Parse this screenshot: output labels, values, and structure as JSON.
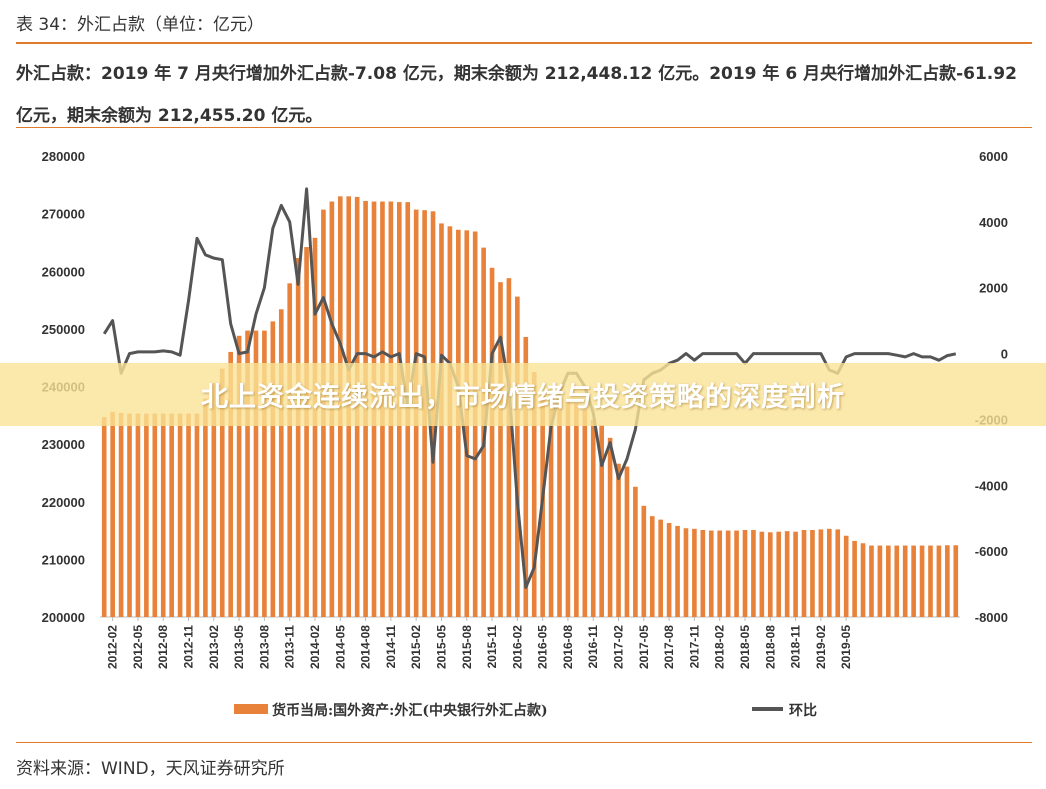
{
  "header": {
    "title": "表 34：外汇占款（单位：亿元）",
    "description": "外汇占款：2019 年 7 月央行增加外汇占款-7.08 亿元，期末余额为 212,448.12 亿元。2019 年 6 月央行增加外汇占款-61.92 亿元，期末余额为 212,455.20 亿元。"
  },
  "banner": {
    "text": "北上资金连续流出，市场情绪与投资策略的深度剖析"
  },
  "footer": {
    "source": "资料来源：WIND，天风证券研究所"
  },
  "colors": {
    "bar": "#e8823a",
    "line": "#555555",
    "accent": "#e07b2a",
    "banner": "#f5d77a"
  },
  "chart_data": {
    "type": "bar+line",
    "title": "",
    "xlabel": "",
    "ylabel": "",
    "ylim": [
      200000,
      280000
    ],
    "y2lim": [
      -8000,
      6000
    ],
    "yticks": [
      200000,
      210000,
      220000,
      230000,
      240000,
      250000,
      260000,
      270000,
      280000
    ],
    "y2ticks": [
      -8000,
      -6000,
      -4000,
      -2000,
      0,
      2000,
      4000,
      6000
    ],
    "xtick_labels": [
      "2012-02",
      "2012-05",
      "2012-08",
      "2012-11",
      "2013-02",
      "2013-05",
      "2013-08",
      "2013-11",
      "2014-02",
      "2014-05",
      "2014-08",
      "2014-11",
      "2015-02",
      "2015-05",
      "2015-08",
      "2015-11",
      "2016-02",
      "2016-05",
      "2016-08",
      "2016-11",
      "2017-02",
      "2017-05",
      "2017-08",
      "2017-11",
      "2018-02",
      "2018-05",
      "2018-08",
      "2018-11",
      "2019-02",
      "2019-05"
    ],
    "x_start": "2012-01",
    "grid": false,
    "legend_position": "bottom",
    "series": [
      {
        "name": "货币当局:国外资产:外汇(中央银行外汇占款)",
        "type": "bar",
        "axis": "left",
        "values": [
          234700,
          235600,
          235400,
          235300,
          235300,
          235300,
          235300,
          235300,
          235300,
          235300,
          235300,
          235300,
          237900,
          240600,
          243100,
          246000,
          248800,
          249700,
          249700,
          249700,
          251300,
          253400,
          257900,
          262300,
          264200,
          265800,
          270700,
          272100,
          273000,
          273000,
          272900,
          272200,
          272100,
          272100,
          272100,
          272000,
          272000,
          270700,
          270600,
          270400,
          268300,
          267800,
          267200,
          267100,
          266900,
          264100,
          260600,
          258100,
          258800,
          255600,
          248600,
          242500,
          239100,
          238100,
          238100,
          237500,
          237100,
          236000,
          234200,
          233300,
          231100,
          226600,
          226100,
          222600,
          219300,
          217500,
          216900,
          216300,
          215800,
          215400,
          215300,
          215100,
          215000,
          215000,
          215000,
          215000,
          215100,
          215100,
          214800,
          214700,
          214800,
          214900,
          214800,
          215100,
          215100,
          215200,
          215300,
          215200,
          214100,
          213200,
          212800,
          212400,
          212400,
          212400,
          212400,
          212400,
          212400,
          212400,
          212400,
          212400,
          212455,
          212448
        ]
      },
      {
        "name": "环比",
        "type": "line",
        "axis": "right",
        "values": [
          600,
          1000,
          -600,
          0,
          50,
          50,
          50,
          80,
          50,
          -50,
          1600,
          3500,
          3000,
          2900,
          2850,
          900,
          0,
          50,
          1200,
          2000,
          3800,
          4500,
          4000,
          2100,
          5000,
          1200,
          1700,
          900,
          300,
          -500,
          0,
          0,
          -100,
          50,
          -100,
          0,
          -1600,
          0,
          -100,
          -3300,
          -50,
          -300,
          -1000,
          -3100,
          -3200,
          -2800,
          0,
          500,
          -1000,
          -4500,
          -7100,
          -6500,
          -4400,
          -2200,
          -1200,
          -600,
          -600,
          -1000,
          -1800,
          -3400,
          -2700,
          -3800,
          -3200,
          -2300,
          -800,
          -600,
          -500,
          -300,
          -200,
          0,
          -200,
          0,
          0,
          0,
          0,
          0,
          -300,
          0,
          0,
          0,
          0,
          0,
          0,
          0,
          0,
          0,
          -500,
          -600,
          -100,
          0,
          0,
          0,
          0,
          0,
          -50,
          -100,
          0,
          -100,
          -100,
          -200,
          -62,
          -7
        ]
      }
    ]
  }
}
